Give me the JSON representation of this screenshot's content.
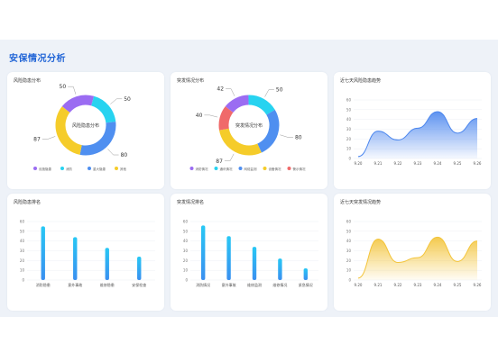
{
  "page": {
    "title": "安保情况分析"
  },
  "cards": {
    "risk_pie": {
      "title": "风险隐患分布"
    },
    "alarm_pie": {
      "title": "突发情况分布"
    },
    "risk_trend": {
      "title": "近七天风险隐患趋势"
    },
    "risk_rank": {
      "title": "风险隐患排名"
    },
    "alarm_rank": {
      "title": "突发情况排名"
    },
    "alarm_trend": {
      "title": "近七天突发情况趋势"
    }
  },
  "colors": {
    "purple": "#9b6cf2",
    "cyan": "#27d3f0",
    "blue": "#4f8ff0",
    "yellow": "#f5cc2a",
    "red": "#f06a6a",
    "bar_top": "#27c8f5",
    "bar_bottom": "#3a8ff0",
    "area_blue": "#4b86ee",
    "area_yellow": "#f3c43a"
  },
  "chart_data": [
    {
      "id": "risk_pie",
      "type": "pie",
      "title": "风险隐患分布",
      "center_label": "风险隐患分布",
      "slices": [
        {
          "name": "设施隐患",
          "value": 50,
          "color": "#9b6cf2"
        },
        {
          "name": "消防",
          "value": 50,
          "color": "#27d3f0"
        },
        {
          "name": "重大隐患",
          "value": 80,
          "color": "#4f8ff0"
        },
        {
          "name": "其他",
          "value": 87,
          "color": "#f5cc2a"
        }
      ],
      "legend_position": "bottom"
    },
    {
      "id": "alarm_pie",
      "type": "pie",
      "title": "突发情况分布",
      "center_label": "突发情况分布",
      "slices": [
        {
          "name": "消防情况",
          "value": 42,
          "color": "#9b6cf2"
        },
        {
          "name": "通讯情况",
          "value": 50,
          "color": "#27d3f0"
        },
        {
          "name": "网络监测",
          "value": 80,
          "color": "#4f8ff0"
        },
        {
          "name": "设备情况",
          "value": 87,
          "color": "#f5cc2a"
        },
        {
          "name": "警示情况",
          "value": 40,
          "color": "#f06a6a"
        }
      ],
      "legend_position": "bottom"
    },
    {
      "id": "risk_trend",
      "type": "area",
      "title": "近七天风险隐患趋势",
      "x": [
        "9.20",
        "9.21",
        "9.22",
        "9.23",
        "9.24",
        "9.25",
        "9.26"
      ],
      "values": [
        2,
        28,
        19,
        31,
        48,
        26,
        41
      ],
      "ylim": [
        0,
        60
      ],
      "yticks": [
        0,
        10,
        20,
        30,
        40,
        50,
        60
      ],
      "grid": true
    },
    {
      "id": "risk_rank",
      "type": "bar",
      "title": "风险隐患排名",
      "categories": [
        "消防隐患",
        "意外事故",
        "维修隐患",
        "安保检查"
      ],
      "values": [
        55,
        44,
        33,
        24
      ],
      "ylim": [
        0,
        60
      ],
      "yticks": [
        0,
        10,
        20,
        30,
        40,
        50,
        60
      ],
      "grid": true
    },
    {
      "id": "alarm_rank",
      "type": "bar",
      "title": "突发情况排名",
      "categories": [
        "消防情况",
        "意外事故",
        "维修监测",
        "维修情况",
        "紧急情况"
      ],
      "values": [
        56,
        45,
        34,
        22,
        12
      ],
      "ylim": [
        0,
        60
      ],
      "yticks": [
        0,
        10,
        20,
        30,
        40,
        50,
        60
      ],
      "grid": true
    },
    {
      "id": "alarm_trend",
      "type": "area",
      "title": "近七天突发情况趋势",
      "x": [
        "9.20",
        "9.21",
        "9.22",
        "9.23",
        "9.24",
        "9.25",
        "9.26"
      ],
      "values": [
        2,
        42,
        18,
        23,
        44,
        19,
        40
      ],
      "ylim": [
        0,
        60
      ],
      "yticks": [
        0,
        10,
        20,
        30,
        40,
        50,
        60
      ],
      "grid": true
    }
  ]
}
